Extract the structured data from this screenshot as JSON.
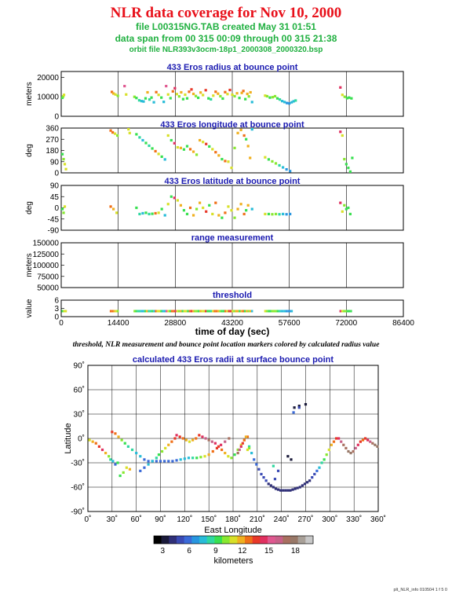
{
  "header": {
    "title": "NLR data coverage for Nov 10, 2000",
    "file_line": "file L00315NG.TAB created May 31 01:51",
    "span_line": "data span from 00 315 00:09 through 00 315 21:38",
    "orbit_line": "orbit file NLR393v3ocm-18p1_2000308_2000320.bsp"
  },
  "caption": "threshold, NLR measurement and bounce point location markers colored by calculated radius value",
  "footer": "plt_NLR_info 010504 1 f 5 0",
  "chart_data": [
    {
      "type": "scatter",
      "title": "433 Eros radius at bounce point",
      "ylabel": "meters",
      "ylim": [
        0,
        23000
      ],
      "yticks": [
        "0",
        "10000",
        "20000"
      ],
      "xlim": [
        0,
        86400
      ],
      "series": [
        {
          "x": [
            300,
            500,
            700,
            12800,
            13200,
            13700,
            14300,
            16000,
            16400,
            18500,
            19000,
            19700,
            20300,
            20800,
            21300,
            21800,
            22300,
            22800,
            23400,
            24000,
            24600,
            25300,
            25900,
            26500,
            27000,
            27600,
            28200,
            28700,
            29200,
            29800,
            30300,
            30800,
            31300,
            31800,
            32300,
            32900,
            33400,
            34000,
            34600,
            35200,
            35800,
            36500,
            37200,
            37800,
            38400,
            39000,
            39600,
            40200,
            40800,
            41400,
            42000,
            42600,
            43200,
            43800,
            44400,
            45000,
            45600,
            46000,
            46500,
            47000,
            47400,
            47800,
            48200,
            51500,
            52000,
            52700,
            53400,
            54000,
            54600,
            55200,
            55800,
            56400,
            57000,
            57600,
            58200,
            58700,
            59200,
            70500,
            71000,
            71600,
            72200,
            72700,
            73300
          ],
          "y": [
            9500,
            10200,
            11000,
            12500,
            11700,
            11200,
            10500,
            15500,
            11200,
            10000,
            9400,
            8200,
            7800,
            7600,
            9200,
            12300,
            8600,
            9600,
            7200,
            12400,
            11000,
            9600,
            7400,
            15500,
            11200,
            9300,
            12800,
            14400,
            11400,
            10200,
            12300,
            8800,
            11100,
            9200,
            12600,
            13800,
            11500,
            10400,
            9500,
            12200,
            10900,
            13400,
            9200,
            8700,
            10600,
            12600,
            11600,
            10300,
            9100,
            12400,
            11400,
            13500,
            11100,
            10300,
            11800,
            9400,
            12000,
            13000,
            8800,
            11500,
            10200,
            12300,
            7300,
            10600,
            10300,
            9600,
            9800,
            10300,
            9200,
            8600,
            7800,
            7300,
            6800,
            6600,
            7200,
            7700,
            8100,
            14800,
            11000,
            10000,
            9300,
            9600,
            9200
          ]
        }
      ]
    },
    {
      "type": "scatter",
      "title": "433 Eros longitude at bounce point",
      "ylabel": "deg",
      "ylim": [
        0,
        360
      ],
      "yticks": [
        "0",
        "90",
        "180",
        "270",
        "360"
      ],
      "xlim": [
        0,
        86400
      ],
      "series": [
        {
          "x": [
            300,
            600,
            900,
            1200,
            12500,
            13000,
            13600,
            14200,
            17000,
            17300,
            19000,
            19800,
            20600,
            21400,
            22200,
            23000,
            23800,
            24600,
            25400,
            26200,
            27000,
            27800,
            28600,
            29400,
            30200,
            31000,
            31800,
            32600,
            33400,
            34200,
            35000,
            35800,
            36600,
            37400,
            38200,
            39000,
            39800,
            40600,
            41400,
            42200,
            43000,
            43800,
            44600,
            45400,
            46200,
            46700,
            47200,
            47700,
            48200,
            51500,
            52400,
            53300,
            54200,
            55100,
            56000,
            56900,
            57800,
            70500,
            71000,
            71500,
            72000,
            72500,
            73000,
            73500
          ],
          "y": [
            150,
            110,
            70,
            30,
            340,
            325,
            315,
            300,
            350,
            320,
            310,
            285,
            262,
            240,
            218,
            196,
            174,
            152,
            130,
            108,
            300,
            262,
            238,
            205,
            200,
            188,
            214,
            190,
            170,
            146,
            262,
            248,
            232,
            212,
            190,
            166,
            140,
            110,
            95,
            90,
            40,
            200,
            320,
            345,
            300,
            270,
            215,
            120,
            350,
            125,
            108,
            92,
            76,
            60,
            44,
            28,
            14,
            330,
            300,
            110,
            70,
            40,
            10,
            120
          ]
        }
      ]
    },
    {
      "type": "scatter",
      "title": "433 Eros latitude at bounce point",
      "ylabel": "deg",
      "ylim": [
        -90,
        90
      ],
      "yticks": [
        "-90",
        "-45",
        "0",
        "45",
        "90"
      ],
      "xlim": [
        0,
        86400
      ],
      "series": [
        {
          "x": [
            300,
            600,
            900,
            12500,
            13200,
            14000,
            19000,
            19800,
            20600,
            21400,
            22200,
            23000,
            23800,
            24600,
            25400,
            26200,
            27000,
            27800,
            28600,
            29400,
            30200,
            31000,
            31800,
            32600,
            33400,
            34200,
            35000,
            35800,
            36600,
            37400,
            38200,
            39000,
            39800,
            40600,
            41400,
            42200,
            43000,
            43800,
            44600,
            45400,
            46200,
            46700,
            47200,
            48200,
            51500,
            52400,
            53300,
            54200,
            55100,
            56000,
            56900,
            57800,
            70500,
            71000,
            71500,
            72000,
            72500,
            73000
          ],
          "y": [
            -5,
            -20,
            5,
            5,
            -5,
            -20,
            0,
            -25,
            -22,
            -20,
            -25,
            -24,
            -22,
            -20,
            -5,
            -30,
            15,
            45,
            40,
            30,
            10,
            -10,
            -25,
            0,
            -30,
            -5,
            20,
            0,
            -15,
            10,
            -25,
            20,
            -30,
            -40,
            -20,
            5,
            -10,
            -40,
            -5,
            15,
            -25,
            -10,
            10,
            -5,
            -25,
            -25,
            -26,
            -25,
            -26,
            -25,
            -26,
            -25,
            20,
            -15,
            10,
            -5,
            0,
            -25
          ]
        }
      ]
    },
    {
      "type": "scatter",
      "title": "range measurement",
      "ylabel": "meters",
      "ylim": [
        50000,
        150000
      ],
      "yticks": [
        "50000",
        "75000",
        "100000",
        "125000",
        "150000"
      ],
      "xlim": [
        0,
        86400
      ],
      "series": [
        {
          "x": [],
          "y": []
        }
      ]
    },
    {
      "type": "scatter",
      "title": "threshold",
      "ylabel": "value",
      "ylim": [
        0,
        6
      ],
      "yticks": [
        "0",
        "3",
        "6"
      ],
      "xlim": [
        0,
        86400
      ],
      "xticks": [
        "0",
        "14400",
        "28800",
        "43200",
        "57600",
        "72000",
        "86400"
      ],
      "xlabel": "time of day (sec)",
      "series": [
        {
          "x_ranges": [
            [
              300,
              1200
            ],
            [
              12500,
              14500
            ],
            [
              18500,
              48500
            ],
            [
              51500,
              58500
            ],
            [
              70500,
              73500
            ]
          ],
          "y": 2
        }
      ]
    },
    {
      "type": "scatter",
      "title": "calculated 433 Eros radii at surface bounce point",
      "xlabel": "East Longitude",
      "ylabel": "Latitude",
      "xlim": [
        0,
        360
      ],
      "ylim": [
        -90,
        90
      ],
      "xticks": [
        "0˚",
        "30˚",
        "60˚",
        "90˚",
        "120˚",
        "150˚",
        "180˚",
        "210˚",
        "240˚",
        "270˚",
        "300˚",
        "330˚",
        "360˚"
      ],
      "yticks": [
        "-90˚",
        "-60˚",
        "-30˚",
        "0˚",
        "30˚",
        "60˚",
        "90˚"
      ],
      "series": [
        {
          "lon": [
            2,
            6,
            10,
            14,
            18,
            22,
            26,
            28,
            31,
            34,
            37,
            30,
            34,
            38,
            42,
            46,
            50,
            55,
            60,
            65,
            70,
            75,
            80,
            85,
            90,
            95,
            100,
            105,
            110,
            115,
            120,
            125,
            130,
            135,
            140,
            145,
            150,
            155,
            160,
            165,
            170,
            175,
            65,
            70,
            75,
            80,
            85,
            88,
            92,
            96,
            100,
            104,
            108,
            110,
            114,
            118,
            122,
            126,
            130,
            134,
            138,
            142,
            146,
            150,
            154,
            158,
            162,
            166,
            170,
            174,
            178,
            182,
            186,
            190,
            194,
            198,
            200,
            203,
            206,
            209,
            212,
            215,
            218,
            221,
            224,
            227,
            230,
            233,
            236,
            239,
            242,
            245,
            248,
            251,
            254,
            257,
            260,
            263,
            266,
            269,
            272,
            275,
            278,
            281,
            284,
            287,
            290,
            293,
            296,
            299,
            302,
            305,
            308,
            311,
            314,
            317,
            320,
            323,
            326,
            329,
            332,
            335,
            338,
            341,
            344,
            347,
            350,
            353,
            356,
            359,
            200,
            198,
            196,
            194,
            192,
            190,
            188,
            186,
            248,
            252,
            256,
            262,
            270,
            262,
            255,
            230,
            236,
            232,
            40,
            44,
            48,
            52
          ],
          "lat": [
            -2,
            -4,
            -6,
            -10,
            -14,
            -18,
            -22,
            -26,
            -28,
            -32,
            -30,
            8,
            6,
            2,
            -2,
            -6,
            -10,
            -14,
            -18,
            -22,
            -26,
            -28,
            -28,
            -28,
            -28,
            -28,
            -28,
            -28,
            -27,
            -26,
            -25,
            -24,
            -24,
            -24,
            -23,
            -22,
            -20,
            -16,
            -12,
            -8,
            -4,
            0,
            -40,
            -36,
            -32,
            -28,
            -24,
            -20,
            -16,
            -12,
            -8,
            -4,
            0,
            4,
            2,
            0,
            -2,
            -4,
            -2,
            0,
            4,
            2,
            0,
            -2,
            -4,
            -6,
            -10,
            -14,
            -18,
            -22,
            -24,
            -20,
            -14,
            -8,
            -2,
            2,
            -10,
            -18,
            -26,
            -32,
            -38,
            -44,
            -48,
            -52,
            -56,
            -58,
            -60,
            -62,
            -63,
            -64,
            -64,
            -64,
            -64,
            -64,
            -63,
            -62,
            -61,
            -60,
            -58,
            -56,
            -54,
            -52,
            -48,
            -44,
            -40,
            -36,
            -30,
            -26,
            -20,
            -14,
            -8,
            -4,
            0,
            0,
            -4,
            -8,
            -12,
            -16,
            -18,
            -16,
            -12,
            -8,
            -4,
            -2,
            0,
            -2,
            -4,
            -6,
            -8,
            -10,
            -12,
            -14,
            2,
            -2,
            -6,
            -10,
            -14,
            -18,
            -22,
            -26,
            38,
            40,
            42,
            38,
            32,
            -34,
            -40,
            -50,
            -46,
            -42,
            -36,
            -38,
            -40,
            -42
          ],
          "radius_km": [
            11,
            12,
            13,
            14,
            15,
            12,
            10,
            8,
            7,
            6,
            9,
            14,
            13,
            12,
            10,
            9,
            8,
            8,
            7,
            7,
            6,
            6,
            6,
            6,
            6,
            6,
            6,
            6,
            6,
            7,
            7,
            7,
            8,
            9,
            10,
            11,
            12,
            13,
            14,
            15,
            16,
            17,
            6,
            6,
            7,
            7,
            8,
            9,
            10,
            11,
            12,
            13,
            14,
            15,
            14,
            13,
            12,
            11,
            12,
            13,
            14,
            15,
            16,
            17,
            16,
            15,
            14,
            13,
            12,
            11,
            10,
            9,
            10,
            11,
            12,
            13,
            8,
            7,
            6,
            6,
            5,
            5,
            5,
            5,
            4,
            4,
            4,
            4,
            4,
            4,
            4,
            4,
            4,
            4,
            4,
            4,
            4,
            4,
            4,
            4,
            4,
            4,
            5,
            5,
            6,
            7,
            8,
            9,
            10,
            11,
            12,
            13,
            14,
            15,
            16,
            17,
            17,
            18,
            18,
            17,
            16,
            15,
            14,
            13,
            14,
            15,
            16,
            17,
            18,
            18,
            10,
            11,
            12,
            13,
            14,
            15,
            16,
            17,
            3,
            3,
            3,
            3,
            3,
            5,
            6,
            8,
            5,
            5,
            9,
            10,
            11,
            12
          ]
        }
      ],
      "colorbar": {
        "label": "kilometers",
        "range": [
          2,
          20
        ],
        "ticks": [
          "3",
          "6",
          "9",
          "12",
          "15",
          "18"
        ],
        "colors": [
          "#000000",
          "#1a1a3a",
          "#303078",
          "#3a4ab4",
          "#3a6ad8",
          "#2896e0",
          "#28bcd8",
          "#30d8a0",
          "#38e050",
          "#88e830",
          "#d8e028",
          "#f0b020",
          "#f07018",
          "#e83828",
          "#e03060",
          "#e05890",
          "#c86088",
          "#a87060",
          "#987868",
          "#a8a098",
          "#c8c8c8"
        ]
      }
    }
  ]
}
